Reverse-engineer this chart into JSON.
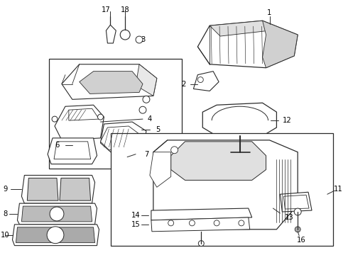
{
  "bg_color": "#ffffff",
  "line_color": "#2a2a2a",
  "label_color": "#000000",
  "figw": 4.9,
  "figh": 3.6,
  "dpi": 100
}
